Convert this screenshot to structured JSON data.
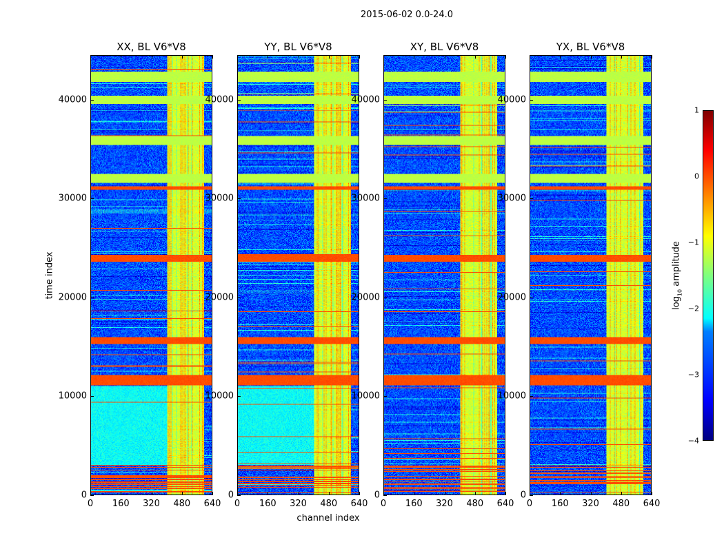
{
  "suptitle": "2015-06-02 0.0-24.0",
  "xlabel": "channel index",
  "ylabel": "time index",
  "colorbar": {
    "label": "log10 amplitude",
    "range": [
      -4,
      1
    ],
    "ticks": [
      "1",
      "0",
      "−1",
      "−2",
      "−3",
      "−4"
    ],
    "tick_values": [
      1,
      0,
      -1,
      -2,
      -3,
      -4
    ],
    "colormap": "jet"
  },
  "chart_data": [
    {
      "type": "heatmap",
      "title": "XX, BL V6*V8",
      "xlim": [
        0,
        640
      ],
      "ylim": [
        0,
        44500
      ],
      "xticks": [
        "0",
        "160",
        "320",
        "480",
        "640"
      ],
      "yticks": [
        "0",
        "10000",
        "20000",
        "30000",
        "40000"
      ],
      "cyan_region": true
    },
    {
      "type": "heatmap",
      "title": "YY, BL V6*V8",
      "xlim": [
        0,
        640
      ],
      "ylim": [
        0,
        44500
      ],
      "xticks": [
        "0",
        "160",
        "320",
        "480",
        "640"
      ],
      "yticks": [
        "0",
        "10000",
        "20000",
        "30000",
        "40000"
      ],
      "cyan_region": true
    },
    {
      "type": "heatmap",
      "title": "XY, BL V6*V8",
      "xlim": [
        0,
        640
      ],
      "ylim": [
        0,
        44500
      ],
      "xticks": [
        "0",
        "160",
        "320",
        "480",
        "640"
      ],
      "yticks": [
        "0",
        "10000",
        "20000",
        "30000",
        "40000"
      ],
      "cyan_region": false
    },
    {
      "type": "heatmap",
      "title": "YX, BL V6*V8",
      "xlim": [
        0,
        640
      ],
      "ylim": [
        0,
        44500
      ],
      "xticks": [
        "0",
        "160",
        "320",
        "480",
        "640"
      ],
      "yticks": [
        "0",
        "10000",
        "20000",
        "30000",
        "40000"
      ],
      "cyan_region": false
    }
  ],
  "features": {
    "base_log_amplitude": -3.0,
    "rfi_channel_range": [
      405,
      600
    ],
    "green_bands_time": [
      [
        41880,
        42930
      ],
      [
        39650,
        40490
      ],
      [
        35470,
        36380
      ],
      [
        31640,
        32540
      ]
    ],
    "orange_bands_time": [
      [
        23620,
        24320
      ],
      [
        11080,
        12120
      ],
      [
        15260,
        15960
      ],
      [
        30950,
        31250
      ],
      [
        0,
        3000
      ]
    ],
    "cyan_region_time": [
      3000,
      11000
    ]
  }
}
